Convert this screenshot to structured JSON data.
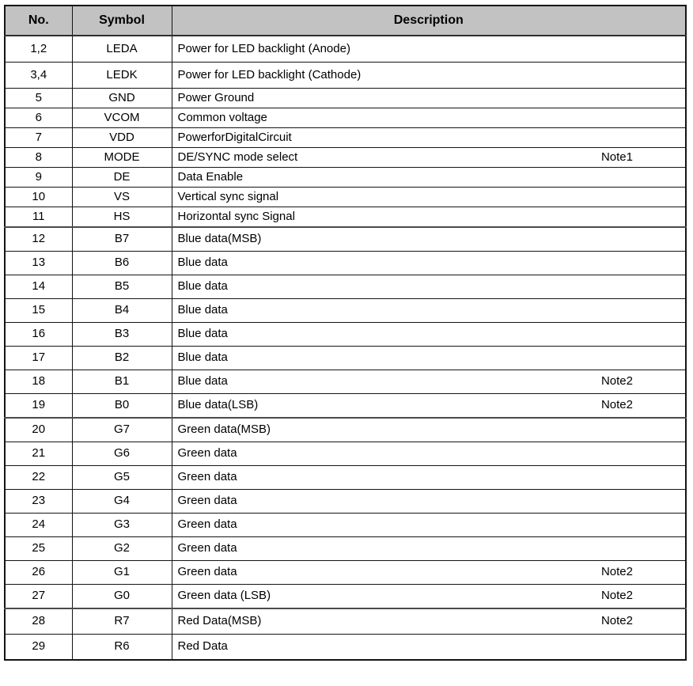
{
  "table": {
    "columns": [
      "No.",
      "Symbol",
      "Description"
    ],
    "rows": [
      {
        "no": "1,2",
        "symbol": "LEDA",
        "description": "Power for LED backlight (Anode)"
      },
      {
        "no": "3,4",
        "symbol": "LEDK",
        "description": "Power for LED backlight (Cathode)"
      },
      {
        "no": "5",
        "symbol": "GND",
        "description": "Power Ground"
      },
      {
        "no": "6",
        "symbol": "VCOM",
        "description": "Common voltage"
      },
      {
        "no": "7",
        "symbol": "VDD",
        "description": "PowerforDigitalCircuit"
      },
      {
        "no": "8",
        "symbol": "MODE",
        "description": "DE/SYNC mode select",
        "note": "Note1"
      },
      {
        "no": "9",
        "symbol": "DE",
        "description": "Data Enable"
      },
      {
        "no": "10",
        "symbol": "VS",
        "description": "Vertical sync signal"
      },
      {
        "no": "11",
        "symbol": "HS",
        "description": "Horizontal sync Signal"
      },
      {
        "no": "12",
        "symbol": "B7",
        "description": "Blue data(MSB)"
      },
      {
        "no": "13",
        "symbol": "B6",
        "description": "Blue data"
      },
      {
        "no": "14",
        "symbol": "B5",
        "description": "Blue data"
      },
      {
        "no": "15",
        "symbol": "B4",
        "description": "Blue data"
      },
      {
        "no": "16",
        "symbol": "B3",
        "description": "Blue data"
      },
      {
        "no": "17",
        "symbol": "B2",
        "description": "Blue data"
      },
      {
        "no": "18",
        "symbol": "B1",
        "description": "Blue data",
        "note": "Note2"
      },
      {
        "no": "19",
        "symbol": "B0",
        "description": "Blue data(LSB)",
        "note": "Note2"
      },
      {
        "no": "20",
        "symbol": "G7",
        "description": "Green data(MSB)"
      },
      {
        "no": "21",
        "symbol": "G6",
        "description": "Green data"
      },
      {
        "no": "22",
        "symbol": "G5",
        "description": "Green data"
      },
      {
        "no": "23",
        "symbol": "G4",
        "description": "Green data"
      },
      {
        "no": "24",
        "symbol": "G3",
        "description": "Green data"
      },
      {
        "no": "25",
        "symbol": "G2",
        "description": "Green data"
      },
      {
        "no": "26",
        "symbol": "G1",
        "description": "Green data",
        "note": "Note2"
      },
      {
        "no": "27",
        "symbol": "G0",
        "description": "Green data (LSB)",
        "note": "Note2"
      },
      {
        "no": "28",
        "symbol": "R7",
        "description": "Red Data(MSB)",
        "note": "Note2"
      },
      {
        "no": "29",
        "symbol": "R6",
        "description": "Red Data"
      }
    ],
    "colors": {
      "header_bg": "#c2c2c2",
      "border": "#141414",
      "group_separator": "#4a4a4a",
      "text": "#000000"
    }
  }
}
